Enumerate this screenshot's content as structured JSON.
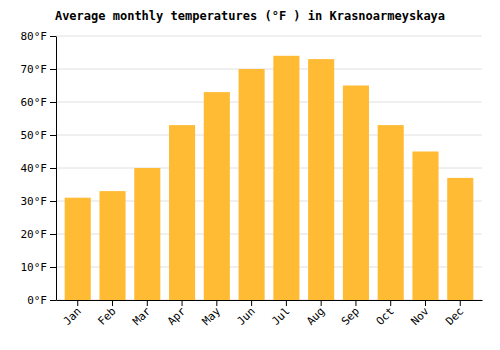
{
  "chart_data": {
    "type": "bar",
    "title": "Average monthly temperatures (°F ) in Krasnoarmeyskaya",
    "categories": [
      "Jan",
      "Feb",
      "Mar",
      "Apr",
      "May",
      "Jun",
      "Jul",
      "Aug",
      "Sep",
      "Oct",
      "Nov",
      "Dec"
    ],
    "values": [
      31,
      33,
      40,
      53,
      63,
      70,
      74,
      73,
      65,
      53,
      45,
      37
    ],
    "color": "#FFBB33",
    "ylim": [
      0,
      80
    ],
    "yticks": [
      {
        "value": 0,
        "label": "0°F"
      },
      {
        "value": 10,
        "label": "10°F"
      },
      {
        "value": 20,
        "label": "20°F"
      },
      {
        "value": 30,
        "label": "30°F"
      },
      {
        "value": 40,
        "label": "40°F"
      },
      {
        "value": 50,
        "label": "50°F"
      },
      {
        "value": 60,
        "label": "60°F"
      },
      {
        "value": 70,
        "label": "70°F"
      },
      {
        "value": 80,
        "label": "80°F"
      }
    ],
    "grid": true
  }
}
